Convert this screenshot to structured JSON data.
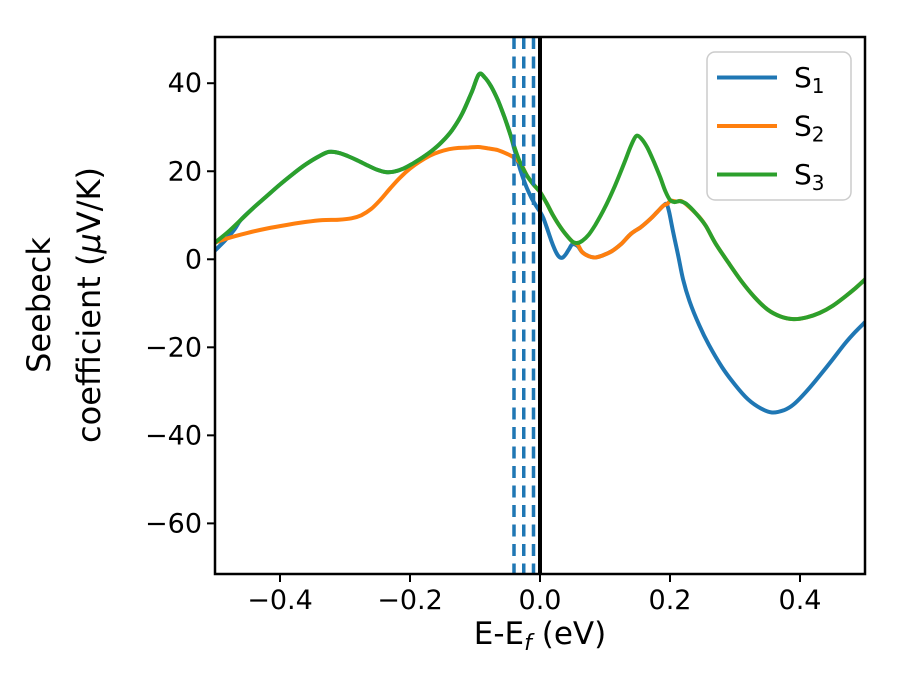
{
  "figure": {
    "title": "",
    "ylabel_line1": "Seebeck",
    "ylabel_line2_pre": "coefficient  (",
    "ylabel_mu": "μ",
    "ylabel_line2_post": "V/K)",
    "xlabel_pre": "E-E",
    "xlabel_sub": "f",
    "xlabel_post": " (eV)"
  },
  "legend": {
    "position": "upper right",
    "entries": [
      {
        "base": "S",
        "sub": "1",
        "color": "#1f77b4"
      },
      {
        "base": "S",
        "sub": "2",
        "color": "#ff7f0e"
      },
      {
        "base": "S",
        "sub": "3",
        "color": "#2ca02c"
      }
    ]
  },
  "chart_data": {
    "type": "line",
    "title": "",
    "xlabel": "E-E_f (eV)",
    "ylabel": "Seebeck coefficient (μV/K)",
    "xlim": [
      -0.5,
      0.5
    ],
    "ylim": [
      -71.5,
      50.5
    ],
    "grid": false,
    "legend_position": "upper right",
    "x_ticks": [
      -0.4,
      -0.2,
      0.0,
      0.2,
      0.4
    ],
    "x_tick_labels": [
      "−0.4",
      "−0.2",
      "0.0",
      "0.2",
      "0.4"
    ],
    "y_ticks": [
      40,
      20,
      0,
      -20,
      -40,
      -60
    ],
    "y_tick_labels": [
      "40",
      "20",
      "0",
      "−20",
      "−40",
      "−60"
    ],
    "vlines": [
      {
        "x": -0.04,
        "style": "dashed",
        "color": "#1f77b4",
        "width": 3.5,
        "dash": "12 7.5"
      },
      {
        "x": -0.025,
        "style": "dashed",
        "color": "#1f77b4",
        "width": 3.5,
        "dash": "12 7.5"
      },
      {
        "x": -0.01,
        "style": "dashed",
        "color": "#1f77b4",
        "width": 3.5,
        "dash": "12 7.5"
      },
      {
        "x": 0.0,
        "style": "solid",
        "color": "#000000",
        "width": 4,
        "dash": ""
      }
    ],
    "series": [
      {
        "name": "S_1",
        "color": "#1f77b4",
        "points": [
          [
            -0.5,
            2.0
          ],
          [
            -0.485,
            4.2
          ],
          [
            -0.47,
            6.8
          ],
          [
            -0.46,
            9.0
          ],
          [
            -0.44,
            11.8
          ],
          [
            -0.42,
            14.4
          ],
          [
            -0.4,
            17.0
          ],
          [
            -0.38,
            19.4
          ],
          [
            -0.36,
            21.6
          ],
          [
            -0.34,
            23.4
          ],
          [
            -0.325,
            24.4
          ],
          [
            -0.31,
            24.2
          ],
          [
            -0.295,
            23.4
          ],
          [
            -0.28,
            22.4
          ],
          [
            -0.265,
            21.3
          ],
          [
            -0.25,
            20.3
          ],
          [
            -0.237,
            19.8
          ],
          [
            -0.225,
            19.9
          ],
          [
            -0.21,
            20.6
          ],
          [
            -0.195,
            21.8
          ],
          [
            -0.18,
            23.2
          ],
          [
            -0.165,
            24.8
          ],
          [
            -0.15,
            26.8
          ],
          [
            -0.135,
            29.4
          ],
          [
            -0.12,
            33.0
          ],
          [
            -0.105,
            38.0
          ],
          [
            -0.094,
            42.0
          ],
          [
            -0.085,
            41.3
          ],
          [
            -0.075,
            39.2
          ],
          [
            -0.065,
            36.2
          ],
          [
            -0.055,
            32.4
          ],
          [
            -0.048,
            29.5
          ],
          [
            -0.044,
            27.5
          ],
          [
            -0.04,
            25.3
          ],
          [
            -0.035,
            22.7
          ],
          [
            -0.03,
            20.2
          ],
          [
            -0.025,
            18.0
          ],
          [
            -0.02,
            16.1
          ],
          [
            -0.015,
            14.5
          ],
          [
            -0.01,
            13.1
          ],
          [
            -0.005,
            11.9
          ],
          [
            0.0,
            10.8
          ],
          [
            0.005,
            9.4
          ],
          [
            0.01,
            7.4
          ],
          [
            0.015,
            5.2
          ],
          [
            0.02,
            3.2
          ],
          [
            0.025,
            1.5
          ],
          [
            0.03,
            0.5
          ],
          [
            0.035,
            0.4
          ],
          [
            0.04,
            1.2
          ],
          [
            0.045,
            2.4
          ],
          [
            0.05,
            3.4
          ],
          [
            0.058,
            3.0
          ],
          [
            0.065,
            1.6
          ],
          [
            0.075,
            0.7
          ],
          [
            0.085,
            0.4
          ],
          [
            0.095,
            0.8
          ],
          [
            0.11,
            1.8
          ],
          [
            0.125,
            3.5
          ],
          [
            0.14,
            5.8
          ],
          [
            0.155,
            7.3
          ],
          [
            0.17,
            9.2
          ],
          [
            0.18,
            10.7
          ],
          [
            0.19,
            12.2
          ],
          [
            0.195,
            12.5
          ],
          [
            0.199,
            10.5
          ],
          [
            0.203,
            7.5
          ],
          [
            0.208,
            4.0
          ],
          [
            0.213,
            0.5
          ],
          [
            0.22,
            -4.5
          ],
          [
            0.23,
            -9.5
          ],
          [
            0.245,
            -15.0
          ],
          [
            0.26,
            -19.5
          ],
          [
            0.28,
            -24.5
          ],
          [
            0.3,
            -28.5
          ],
          [
            0.32,
            -31.8
          ],
          [
            0.34,
            -33.9
          ],
          [
            0.357,
            -34.8
          ],
          [
            0.375,
            -34.3
          ],
          [
            0.39,
            -33.0
          ],
          [
            0.41,
            -30.0
          ],
          [
            0.43,
            -26.5
          ],
          [
            0.45,
            -22.8
          ],
          [
            0.47,
            -19.0
          ],
          [
            0.485,
            -16.5
          ],
          [
            0.5,
            -14.3
          ]
        ]
      },
      {
        "name": "S_2",
        "color": "#ff7f0e",
        "points": [
          [
            -0.5,
            3.8
          ],
          [
            -0.48,
            4.8
          ],
          [
            -0.45,
            6.0
          ],
          [
            -0.42,
            7.0
          ],
          [
            -0.39,
            7.8
          ],
          [
            -0.36,
            8.5
          ],
          [
            -0.335,
            8.9
          ],
          [
            -0.31,
            9.0
          ],
          [
            -0.29,
            9.3
          ],
          [
            -0.275,
            10.0
          ],
          [
            -0.26,
            11.4
          ],
          [
            -0.245,
            13.6
          ],
          [
            -0.23,
            16.2
          ],
          [
            -0.215,
            18.6
          ],
          [
            -0.2,
            20.6
          ],
          [
            -0.185,
            22.2
          ],
          [
            -0.17,
            23.5
          ],
          [
            -0.155,
            24.4
          ],
          [
            -0.14,
            25.0
          ],
          [
            -0.125,
            25.3
          ],
          [
            -0.11,
            25.4
          ],
          [
            -0.095,
            25.5
          ],
          [
            -0.08,
            25.2
          ],
          [
            -0.065,
            24.8
          ],
          [
            -0.05,
            23.9
          ],
          [
            -0.04,
            23.1
          ],
          [
            -0.03,
            21.8
          ],
          [
            -0.02,
            19.0
          ],
          [
            -0.01,
            17.0
          ],
          [
            0.0,
            15.3
          ],
          [
            0.01,
            12.8
          ],
          [
            0.02,
            10.0
          ],
          [
            0.03,
            7.6
          ],
          [
            0.04,
            5.6
          ],
          [
            0.05,
            4.0
          ],
          [
            0.058,
            3.3
          ],
          [
            0.065,
            1.6
          ],
          [
            0.075,
            0.7
          ],
          [
            0.085,
            0.4
          ],
          [
            0.095,
            0.8
          ],
          [
            0.11,
            1.8
          ],
          [
            0.125,
            3.5
          ],
          [
            0.14,
            5.8
          ],
          [
            0.155,
            7.3
          ],
          [
            0.17,
            9.2
          ],
          [
            0.18,
            10.7
          ],
          [
            0.19,
            12.2
          ],
          [
            0.196,
            12.6
          ],
          [
            0.201,
            13.3
          ],
          [
            0.21,
            13.1
          ],
          [
            0.218,
            13.2
          ],
          [
            0.23,
            11.8
          ],
          [
            0.245,
            9.6
          ],
          [
            0.255,
            7.6
          ],
          [
            0.27,
            3.6
          ],
          [
            0.29,
            -0.8
          ],
          [
            0.31,
            -5.0
          ],
          [
            0.33,
            -8.6
          ],
          [
            0.35,
            -11.4
          ],
          [
            0.37,
            -13.0
          ],
          [
            0.39,
            -13.6
          ],
          [
            0.41,
            -13.2
          ],
          [
            0.43,
            -12.2
          ],
          [
            0.45,
            -10.6
          ],
          [
            0.47,
            -8.4
          ],
          [
            0.485,
            -6.6
          ],
          [
            0.5,
            -4.6
          ]
        ]
      },
      {
        "name": "S_3",
        "color": "#2ca02c",
        "points": [
          [
            -0.5,
            3.8
          ],
          [
            -0.48,
            6.2
          ],
          [
            -0.46,
            9.0
          ],
          [
            -0.44,
            11.8
          ],
          [
            -0.42,
            14.4
          ],
          [
            -0.4,
            17.0
          ],
          [
            -0.38,
            19.4
          ],
          [
            -0.36,
            21.6
          ],
          [
            -0.34,
            23.4
          ],
          [
            -0.325,
            24.4
          ],
          [
            -0.31,
            24.2
          ],
          [
            -0.295,
            23.4
          ],
          [
            -0.28,
            22.4
          ],
          [
            -0.265,
            21.3
          ],
          [
            -0.25,
            20.3
          ],
          [
            -0.237,
            19.8
          ],
          [
            -0.225,
            19.9
          ],
          [
            -0.21,
            20.6
          ],
          [
            -0.195,
            21.8
          ],
          [
            -0.18,
            23.2
          ],
          [
            -0.165,
            24.8
          ],
          [
            -0.15,
            26.8
          ],
          [
            -0.135,
            29.4
          ],
          [
            -0.12,
            33.0
          ],
          [
            -0.105,
            38.0
          ],
          [
            -0.094,
            42.0
          ],
          [
            -0.085,
            41.3
          ],
          [
            -0.075,
            39.2
          ],
          [
            -0.065,
            36.2
          ],
          [
            -0.055,
            32.4
          ],
          [
            -0.045,
            28.0
          ],
          [
            -0.035,
            23.6
          ],
          [
            -0.03,
            21.8
          ],
          [
            -0.02,
            19.0
          ],
          [
            -0.01,
            17.0
          ],
          [
            0.0,
            15.3
          ],
          [
            0.01,
            12.8
          ],
          [
            0.02,
            10.0
          ],
          [
            0.03,
            7.6
          ],
          [
            0.04,
            5.6
          ],
          [
            0.05,
            4.0
          ],
          [
            0.057,
            3.7
          ],
          [
            0.065,
            4.2
          ],
          [
            0.075,
            5.6
          ],
          [
            0.085,
            7.8
          ],
          [
            0.1,
            11.8
          ],
          [
            0.115,
            16.6
          ],
          [
            0.13,
            22.0
          ],
          [
            0.14,
            25.8
          ],
          [
            0.148,
            28.0
          ],
          [
            0.156,
            27.4
          ],
          [
            0.165,
            25.4
          ],
          [
            0.175,
            22.2
          ],
          [
            0.185,
            18.6
          ],
          [
            0.193,
            15.4
          ],
          [
            0.2,
            13.5
          ],
          [
            0.207,
            13.0
          ],
          [
            0.215,
            13.2
          ],
          [
            0.225,
            12.6
          ],
          [
            0.24,
            10.4
          ],
          [
            0.255,
            7.6
          ],
          [
            0.27,
            3.6
          ],
          [
            0.29,
            -0.8
          ],
          [
            0.31,
            -5.0
          ],
          [
            0.33,
            -8.6
          ],
          [
            0.35,
            -11.4
          ],
          [
            0.37,
            -13.0
          ],
          [
            0.39,
            -13.6
          ],
          [
            0.41,
            -13.2
          ],
          [
            0.43,
            -12.2
          ],
          [
            0.45,
            -10.6
          ],
          [
            0.47,
            -8.4
          ],
          [
            0.485,
            -6.6
          ],
          [
            0.5,
            -4.6
          ]
        ]
      }
    ]
  }
}
